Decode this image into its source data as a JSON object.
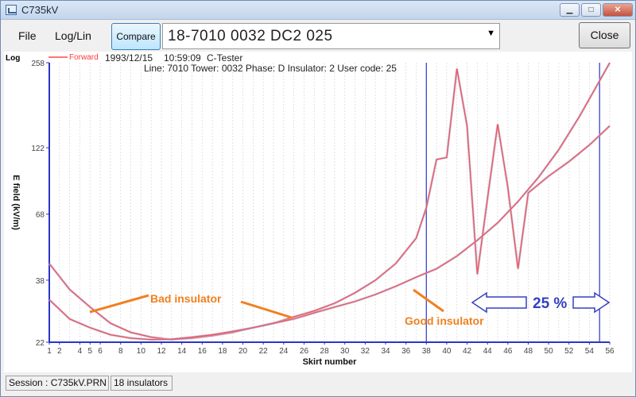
{
  "window": {
    "title": "C735kV",
    "buttons": {
      "minimize": "▁",
      "maximize": "□",
      "close": "✕"
    }
  },
  "menu": {
    "file": "File",
    "loglin": "Log/Lin"
  },
  "toolbar": {
    "compare_label": "Compare",
    "combo_value": "18-7010 0032 DC2 025",
    "close_label": "Close"
  },
  "chart_info": {
    "scale_label": "Log",
    "legend_label": "Forward",
    "date": "1993/12/15",
    "time": "10:59:09",
    "tester": "C-Tester",
    "details": "Line: 7010 Tower: 0032 Phase: D Insulator: 2 User code: 25",
    "bad_label": "Bad insulator",
    "good_label": "Good insulator",
    "pct_label": "25 %"
  },
  "chart_data": {
    "type": "line",
    "xlabel": "Skirt number",
    "ylabel": "E field (kV/m)",
    "yscale": "log",
    "xlim": [
      1,
      56
    ],
    "ylim": [
      22,
      258
    ],
    "yticks": [
      22,
      38,
      68,
      122,
      258
    ],
    "xticks": [
      1,
      2,
      4,
      5,
      6,
      8,
      10,
      12,
      14,
      16,
      18,
      20,
      22,
      24,
      26,
      28,
      30,
      32,
      34,
      36,
      38,
      40,
      42,
      44,
      46,
      48,
      50,
      52,
      54,
      56
    ],
    "grid": "vertical",
    "marker_lines_x": [
      38,
      55
    ],
    "series": [
      {
        "name": "Bad insulator",
        "x": [
          1,
          3,
          5,
          7,
          9,
          11,
          13,
          15,
          17,
          19,
          21,
          23,
          25,
          27,
          29,
          31,
          33,
          35,
          37,
          38,
          39,
          40,
          41,
          42,
          43,
          44,
          45,
          46,
          47,
          48,
          50,
          52,
          54,
          56
        ],
        "y": [
          44,
          35,
          30,
          26,
          24,
          23,
          22.5,
          22.8,
          23.3,
          24,
          25,
          26,
          27.5,
          29,
          31,
          34,
          38,
          44,
          55,
          72,
          110,
          112,
          245,
          148,
          40,
          78,
          150,
          86,
          42,
          82,
          95,
          108,
          125,
          148
        ]
      },
      {
        "name": "Good insulator",
        "x": [
          1,
          3,
          5,
          7,
          9,
          11,
          13,
          15,
          17,
          19,
          21,
          23,
          25,
          27,
          29,
          31,
          33,
          35,
          37,
          39,
          41,
          43,
          45,
          47,
          49,
          51,
          53,
          55,
          56
        ],
        "y": [
          32,
          27,
          25,
          23.5,
          22.8,
          22.5,
          22.6,
          23,
          23.5,
          24.2,
          25,
          26,
          27,
          28.5,
          30,
          31.5,
          33.5,
          36,
          39,
          42,
          47,
          54,
          63,
          76,
          94,
          120,
          160,
          220,
          258
        ]
      }
    ]
  },
  "status": {
    "session": "Session : C735kV.PRN",
    "count": "18 insulators"
  }
}
